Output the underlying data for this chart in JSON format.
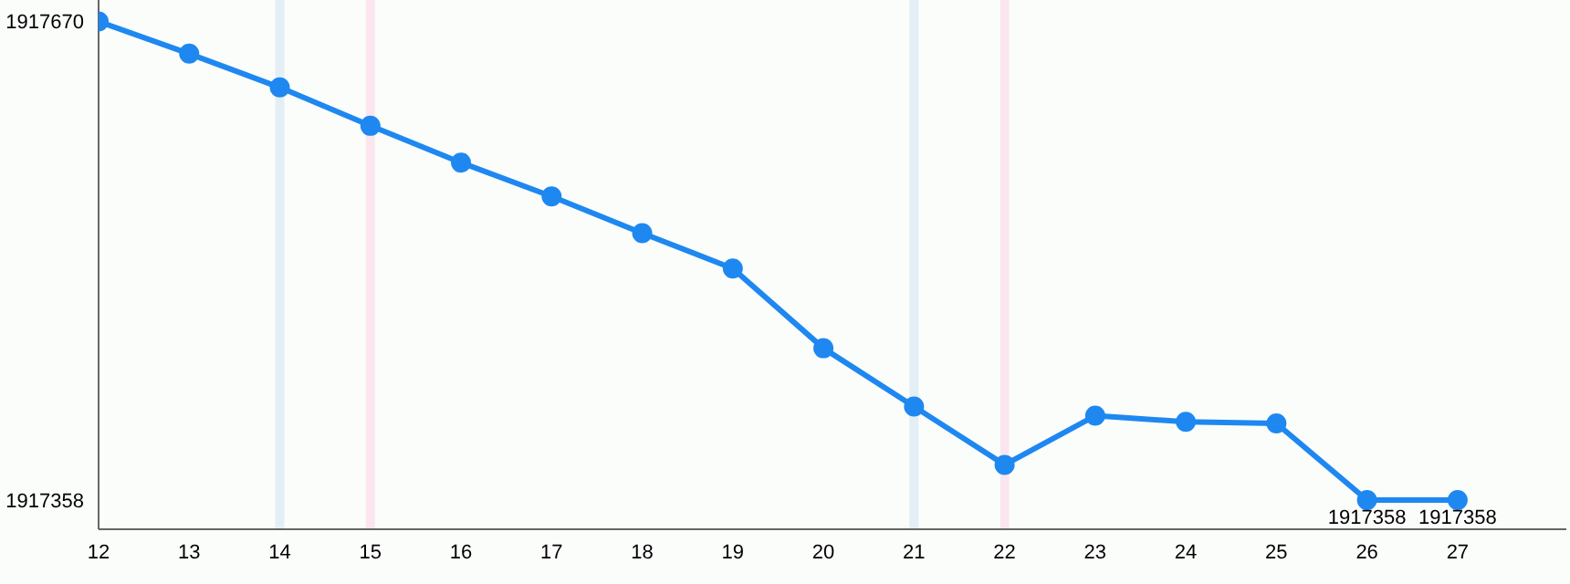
{
  "chart_data": {
    "type": "line",
    "x": [
      12,
      13,
      14,
      15,
      16,
      17,
      18,
      19,
      20,
      21,
      22,
      23,
      24,
      25,
      26,
      27
    ],
    "series": [
      {
        "color": "#1e88f0",
        "values": [
          1917670,
          1917649,
          1917627,
          1917602,
          1917578,
          1917556,
          1917532,
          1917509,
          1917457,
          1917419,
          1917381,
          1917413,
          1917409,
          1917408,
          1917358,
          1917358
        ],
        "value_labels": [
          null,
          null,
          null,
          null,
          null,
          null,
          null,
          null,
          null,
          null,
          null,
          null,
          null,
          null,
          "1917358",
          "1917358"
        ]
      }
    ],
    "xlim": [
      12,
      28.2
    ],
    "xticks": [
      12,
      13,
      14,
      15,
      16,
      17,
      18,
      19,
      20,
      21,
      22,
      23,
      24,
      25,
      26,
      27
    ],
    "ylim": [
      1917339,
      1917684
    ],
    "yticks": [
      1917358,
      1917670
    ],
    "ref_lines": [
      {
        "axis": "x",
        "value": 14,
        "color": "#e3eff5"
      },
      {
        "axis": "x",
        "value": 15,
        "color": "#fbe6ef"
      },
      {
        "axis": "x",
        "value": 21,
        "color": "#e3eff5"
      },
      {
        "axis": "x",
        "value": 22,
        "color": "#fbe6ef"
      }
    ],
    "grid": false,
    "legend": false,
    "marker": "circle",
    "line_style": "solid"
  }
}
